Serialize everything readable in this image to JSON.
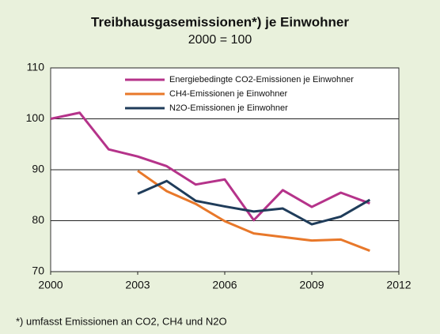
{
  "chart_data": {
    "type": "line",
    "title": "Treibhausgasemissionen*) je Einwohner",
    "subtitle": "2000 = 100",
    "footnote": "*) umfasst Emissionen an CO2, CH4 und N2O",
    "x": [
      2000,
      2001,
      2002,
      2003,
      2004,
      2005,
      2006,
      2007,
      2008,
      2009,
      2010,
      2011
    ],
    "series": [
      {
        "name": "Energiebedingte CO2-Emissionen je Einwohner",
        "color": "#b5338a",
        "values": [
          100,
          101.2,
          94,
          92.6,
          90.7,
          87.1,
          88.1,
          80.1,
          86,
          82.7,
          85.5,
          83.4
        ]
      },
      {
        "name": "CH4-Emissionen je Einwohner",
        "color": "#e8782a",
        "values": [
          null,
          null,
          null,
          89.8,
          85.8,
          83.3,
          79.9,
          77.5,
          76.8,
          76.1,
          76.3,
          74.1
        ]
      },
      {
        "name": "N2O-Emissionen je Einwohner",
        "color": "#1f3c5a",
        "values": [
          null,
          null,
          null,
          85.3,
          87.8,
          83.9,
          82.8,
          81.8,
          82.4,
          79.3,
          80.8,
          84.1
        ]
      }
    ],
    "xlim": [
      2000,
      2012
    ],
    "xticks": [
      2000,
      2003,
      2006,
      2009,
      2012
    ],
    "ylim": [
      70,
      110
    ],
    "yticks": [
      70,
      80,
      90,
      100,
      110
    ],
    "grid": true,
    "legend": "upper right"
  }
}
